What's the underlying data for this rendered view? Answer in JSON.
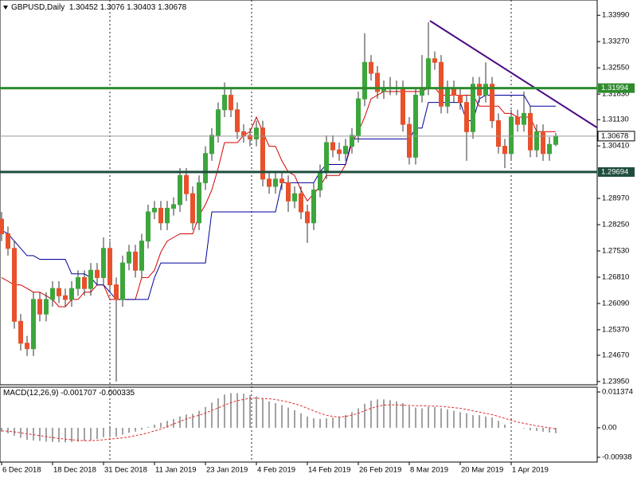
{
  "chart_data": [
    {
      "type": "candlestick",
      "title": "GBPUSD,Daily",
      "x": [
        "6 Dec 2018",
        null,
        null,
        null,
        null,
        null,
        null,
        null,
        "18 Dec 2018",
        null,
        null,
        null,
        null,
        null,
        null,
        null,
        "31 Dec 2018",
        null,
        null,
        null,
        null,
        null,
        null,
        null,
        "11 Jan 2019",
        null,
        null,
        null,
        null,
        null,
        null,
        null,
        "23 Jan 2019",
        null,
        null,
        null,
        null,
        null,
        null,
        null,
        "4 Feb 2019",
        null,
        null,
        null,
        null,
        null,
        null,
        null,
        "14 Feb 2019",
        null,
        null,
        null,
        null,
        null,
        null,
        null,
        "26 Feb 2019",
        null,
        null,
        null,
        null,
        null,
        null,
        null,
        "8 Mar 2019",
        null,
        null,
        null,
        null,
        null,
        null,
        null,
        "20 Mar 2019",
        null,
        null,
        null,
        null,
        null,
        null,
        null,
        "1 Apr 2019",
        null,
        null,
        null,
        null,
        null,
        null,
        null
      ],
      "open": [
        1.284,
        1.28,
        1.276,
        1.256,
        1.25,
        1.2485,
        1.262,
        1.258,
        1.262,
        1.265,
        1.263,
        1.262,
        1.265,
        1.268,
        1.265,
        1.27,
        1.268,
        1.276,
        1.266,
        1.262,
        1.272,
        1.275,
        1.27,
        1.278,
        1.286,
        1.287,
        1.283,
        1.287,
        1.288,
        1.296,
        1.291,
        1.283,
        1.294,
        1.302,
        1.307,
        1.314,
        1.318,
        1.314,
        1.308,
        1.307,
        1.306,
        1.309,
        1.295,
        1.293,
        1.295,
        1.294,
        1.289,
        1.291,
        1.286,
        1.283,
        1.292,
        1.297,
        1.305,
        1.303,
        1.302,
        1.304,
        1.307,
        1.317,
        1.327,
        1.324,
        1.319,
        1.32,
        1.32,
        1.32,
        1.31,
        1.301,
        1.318,
        1.32,
        1.328,
        1.327,
        1.315,
        1.32,
        1.318,
        1.316,
        1.308,
        1.321,
        1.318,
        1.321,
        1.311,
        1.304,
        1.302,
        1.312,
        1.31,
        1.313,
        1.303,
        1.308,
        1.302,
        1.30452
      ],
      "high": [
        1.286,
        1.282,
        1.278,
        1.258,
        1.252,
        1.264,
        1.264,
        1.264,
        1.267,
        1.267,
        1.265,
        1.267,
        1.27,
        1.27,
        1.272,
        1.272,
        1.279,
        1.278,
        1.268,
        1.274,
        1.277,
        1.277,
        1.28,
        1.288,
        1.289,
        1.289,
        1.289,
        1.29,
        1.298,
        1.298,
        1.293,
        1.296,
        1.304,
        1.309,
        1.316,
        1.3215,
        1.32,
        1.316,
        1.31,
        1.309,
        1.311,
        1.311,
        1.297,
        1.297,
        1.297,
        1.296,
        1.293,
        1.293,
        1.288,
        1.294,
        1.299,
        1.307,
        1.307,
        1.305,
        1.306,
        1.309,
        1.319,
        1.335,
        1.329,
        1.326,
        1.322,
        1.323,
        1.322,
        1.322,
        1.312,
        1.32,
        1.329,
        1.338,
        1.33,
        1.329,
        1.322,
        1.322,
        1.32,
        1.318,
        1.323,
        1.323,
        1.327,
        1.323,
        1.313,
        1.306,
        1.314,
        1.314,
        1.319,
        1.315,
        1.31,
        1.31,
        1.3065,
        1.3076
      ],
      "low": [
        1.278,
        1.274,
        1.254,
        1.248,
        1.2465,
        1.2465,
        1.256,
        1.256,
        1.26,
        1.261,
        1.26,
        1.26,
        1.263,
        1.263,
        1.263,
        1.266,
        1.266,
        1.264,
        1.2395,
        1.26,
        1.27,
        1.268,
        1.268,
        1.276,
        1.284,
        1.281,
        1.281,
        1.285,
        1.286,
        1.289,
        1.281,
        1.281,
        1.292,
        1.3,
        1.305,
        1.312,
        1.312,
        1.306,
        1.305,
        1.304,
        1.304,
        1.293,
        1.291,
        1.291,
        1.292,
        1.286,
        1.287,
        1.284,
        1.2775,
        1.281,
        1.29,
        1.295,
        1.301,
        1.3,
        1.3,
        1.302,
        1.305,
        1.315,
        1.322,
        1.317,
        1.317,
        1.318,
        1.318,
        1.308,
        1.299,
        1.299,
        1.316,
        1.318,
        1.325,
        1.313,
        1.313,
        1.316,
        1.314,
        1.3,
        1.306,
        1.316,
        1.316,
        1.309,
        1.302,
        1.298,
        1.3,
        1.308,
        1.308,
        1.301,
        1.301,
        1.3,
        1.3,
        1.30403
      ],
      "close": [
        1.28,
        1.276,
        1.256,
        1.25,
        1.2485,
        1.262,
        1.258,
        1.262,
        1.265,
        1.263,
        1.262,
        1.265,
        1.268,
        1.265,
        1.27,
        1.268,
        1.276,
        1.266,
        1.262,
        1.272,
        1.275,
        1.27,
        1.278,
        1.286,
        1.287,
        1.283,
        1.287,
        1.288,
        1.296,
        1.291,
        1.283,
        1.294,
        1.302,
        1.307,
        1.314,
        1.318,
        1.314,
        1.308,
        1.307,
        1.306,
        1.309,
        1.295,
        1.293,
        1.295,
        1.294,
        1.289,
        1.291,
        1.286,
        1.283,
        1.292,
        1.297,
        1.305,
        1.303,
        1.302,
        1.304,
        1.307,
        1.317,
        1.327,
        1.324,
        1.319,
        1.32,
        1.32,
        1.32,
        1.31,
        1.301,
        1.318,
        1.32,
        1.328,
        1.327,
        1.315,
        1.32,
        1.318,
        1.316,
        1.308,
        1.321,
        1.318,
        1.321,
        1.311,
        1.304,
        1.302,
        1.312,
        1.31,
        1.313,
        1.303,
        1.308,
        1.302,
        1.3045,
        1.30678
      ],
      "up_color": "#3ca63c",
      "down_color": "#e8512b",
      "wick_color": "#333333",
      "lines": [
        {
          "color": "#d40000",
          "values": [
            1.268,
            1.267,
            1.266,
            1.266,
            1.265,
            1.264,
            1.264,
            1.263,
            1.262,
            1.26,
            1.26,
            1.262,
            1.262,
            1.264,
            1.264,
            1.266,
            1.266,
            1.262,
            1.262,
            1.262,
            1.262,
            1.262,
            1.268,
            1.268,
            1.27,
            1.275,
            1.278,
            1.279,
            1.28,
            1.28,
            1.28,
            1.285,
            1.288,
            1.292,
            1.298,
            1.305,
            1.305,
            1.305,
            1.307,
            1.308,
            1.312,
            1.308,
            1.304,
            1.304,
            1.3,
            1.297,
            1.296,
            1.292,
            1.289,
            1.291,
            1.293,
            1.296,
            1.296,
            1.296,
            1.299,
            1.305,
            1.308,
            1.312,
            1.317,
            1.318,
            1.319,
            1.319,
            1.319,
            1.319,
            1.319,
            1.319,
            1.319,
            1.32,
            1.32,
            1.318,
            1.318,
            1.318,
            1.318,
            1.318,
            1.318,
            1.315,
            1.315,
            1.315,
            1.315,
            1.313,
            1.313,
            1.312,
            1.312,
            1.312,
            1.308,
            1.308,
            1.308,
            1.308
          ]
        },
        {
          "color": "#00009c",
          "values": [
            1.281,
            1.28,
            1.278,
            1.276,
            1.274,
            1.274,
            1.273,
            1.273,
            1.273,
            1.273,
            1.273,
            1.269,
            1.269,
            1.269,
            1.268,
            1.266,
            1.266,
            1.264,
            1.262,
            1.262,
            1.262,
            1.262,
            1.262,
            1.262,
            1.268,
            1.272,
            1.272,
            1.272,
            1.272,
            1.272,
            1.272,
            1.272,
            1.272,
            1.286,
            1.286,
            1.286,
            1.286,
            1.286,
            1.286,
            1.286,
            1.286,
            1.286,
            1.286,
            1.286,
            1.294,
            1.294,
            1.294,
            1.294,
            1.294,
            1.294,
            1.297,
            1.299,
            1.299,
            1.299,
            1.299,
            1.306,
            1.306,
            1.306,
            1.306,
            1.306,
            1.306,
            1.306,
            1.306,
            1.306,
            1.306,
            1.309,
            1.309,
            1.316,
            1.316,
            1.316,
            1.316,
            1.316,
            1.316,
            1.311,
            1.311,
            1.317,
            1.318,
            1.318,
            1.318,
            1.318,
            1.318,
            1.318,
            1.318,
            1.315,
            1.315,
            1.315,
            1.315,
            1.315
          ]
        }
      ],
      "levels": [
        {
          "value": 1.31994,
          "color": "#2e8b2e"
        },
        {
          "value": 1.29694,
          "color": "#1f4d3d"
        }
      ],
      "trendline": {
        "x": [
          67.25,
          93.5
        ],
        "y": [
          1.3384,
          1.3091
        ],
        "color": "#4b0a82"
      },
      "xlim": [
        -0.25,
        93.5
      ],
      "ylim": [
        1.2386,
        1.3441
      ],
      "yticks": [
        {
          "value": 1.3399,
          "label": "1.33990"
        },
        {
          "value": 1.3327,
          "label": "1.33270"
        },
        {
          "value": 1.3255,
          "label": "1.32550"
        },
        {
          "value": 1.3183,
          "label": "1.31830"
        },
        {
          "value": 1.3113,
          "label": "1.31130"
        },
        {
          "value": 1.3041,
          "label": "1.30410"
        },
        {
          "value": 1.2897,
          "label": "1.28970"
        },
        {
          "value": 1.2825,
          "label": "1.28250"
        },
        {
          "value": 1.2753,
          "label": "1.27530"
        },
        {
          "value": 1.2681,
          "label": "1.26810"
        },
        {
          "value": 1.2609,
          "label": "1.26090"
        },
        {
          "value": 1.2537,
          "label": "1.25370"
        },
        {
          "value": 1.2467,
          "label": "1.24670"
        },
        {
          "value": 1.2395,
          "label": "1.23950"
        }
      ]
    },
    {
      "type": "macd",
      "title": "MACD(12,26,9)",
      "histogram": [
        -0.0012,
        -0.0018,
        -0.0025,
        -0.0032,
        -0.0038,
        -0.004,
        -0.0042,
        -0.0044,
        -0.0045,
        -0.0046,
        -0.0046,
        -0.0045,
        -0.0044,
        -0.0042,
        -0.004,
        -0.0036,
        -0.003,
        -0.003,
        -0.0028,
        -0.0022,
        -0.0016,
        -0.0012,
        -0.0006,
        0.0002,
        0.001,
        0.0016,
        0.0022,
        0.0028,
        0.0036,
        0.0042,
        0.0044,
        0.0054,
        0.0066,
        0.008,
        0.0094,
        0.0106,
        0.011,
        0.011,
        0.0108,
        0.0104,
        0.01,
        0.0092,
        0.0084,
        0.0078,
        0.0072,
        0.0064,
        0.0056,
        0.0046,
        0.0036,
        0.003,
        0.0028,
        0.003,
        0.0032,
        0.0034,
        0.004,
        0.005,
        0.0062,
        0.0076,
        0.0086,
        0.009,
        0.009,
        0.0088,
        0.0084,
        0.0078,
        0.0068,
        0.0064,
        0.0062,
        0.0066,
        0.0066,
        0.0062,
        0.0058,
        0.0054,
        0.005,
        0.0046,
        0.004,
        0.004,
        0.0036,
        0.0032,
        0.0022,
        0.001,
        0.0004,
        0.0,
        -0.0002,
        -0.0008,
        -0.001,
        -0.0012,
        -0.0015,
        -0.001707
      ],
      "signal": [
        -0.001,
        -0.0011,
        -0.0013,
        -0.0016,
        -0.0019,
        -0.0022,
        -0.0025,
        -0.0028,
        -0.0031,
        -0.0034,
        -0.0036,
        -0.0038,
        -0.004,
        -0.0041,
        -0.0041,
        -0.004,
        -0.0038,
        -0.0036,
        -0.0034,
        -0.0032,
        -0.0029,
        -0.0025,
        -0.0021,
        -0.0016,
        -0.001,
        -0.0004,
        0.0004,
        0.0012,
        0.002,
        0.0028,
        0.0034,
        0.004,
        0.0047,
        0.0055,
        0.0063,
        0.0072,
        0.008,
        0.0086,
        0.009,
        0.0094,
        0.0094,
        0.0093,
        0.0092,
        0.009,
        0.0086,
        0.0082,
        0.0076,
        0.007,
        0.0062,
        0.0054,
        0.0046,
        0.004,
        0.0036,
        0.0034,
        0.0036,
        0.004,
        0.0046,
        0.0054,
        0.0062,
        0.0068,
        0.0072,
        0.0073,
        0.0073,
        0.0072,
        0.0071,
        0.007,
        0.007,
        0.0069,
        0.0069,
        0.0068,
        0.0066,
        0.0064,
        0.0062,
        0.0058,
        0.0054,
        0.005,
        0.0046,
        0.0042,
        0.0036,
        0.003,
        0.0024,
        0.0018,
        0.0014,
        0.001,
        0.0006,
        0.0003,
        0.0,
        -0.000335
      ],
      "histogram_color": "#444444",
      "signal_color": "#e03030",
      "ylim": [
        -0.0109,
        0.0129
      ],
      "yticks": [
        0.011374,
        {
          "value": 0,
          "label": "0.00"
        },
        -0.00938
      ]
    }
  ]
}
